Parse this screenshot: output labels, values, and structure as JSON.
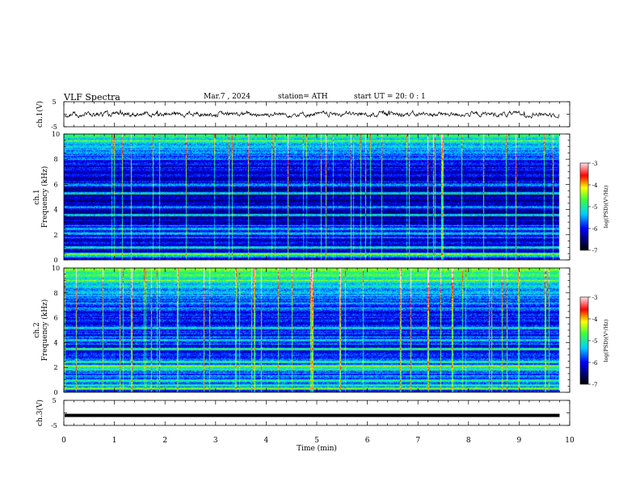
{
  "header": {
    "title": "VLF  Spectra",
    "date": "Mar.7  , 2024",
    "station": "station= ATH",
    "start_ut": "start  UT  =   20: 0   : 1"
  },
  "chart_data": [
    {
      "type": "line",
      "panel": "ch1-waveform",
      "ylabel": "ch.1(V)",
      "ylim": [
        -5,
        5
      ],
      "yticks": [
        "5",
        "-5"
      ],
      "x_range_min": [
        0,
        9.8
      ],
      "trace_level_v": 0.0,
      "trace_amplitude_v": 1.5
    },
    {
      "type": "heatmap",
      "panel": "ch1-spectrogram",
      "ylabel_line1": "ch.1",
      "ylabel_line2": "Frequency  (kHz)",
      "ylim": [
        0,
        10
      ],
      "yticks": [
        "0",
        "2",
        "4",
        "6",
        "8",
        "10"
      ],
      "x_range_min": [
        0,
        9.8
      ],
      "strong_bands_khz": [
        0.3,
        0.5,
        1.0,
        2.1,
        2.5,
        3.6,
        4.2,
        5.3,
        6.0
      ],
      "colorbar": {
        "label": "log(PSD)(V²/Hz)",
        "ticks": [
          "-3",
          "-4",
          "-5",
          "-6",
          "-7"
        ],
        "range": [
          -7,
          -3
        ]
      }
    },
    {
      "type": "heatmap",
      "panel": "ch2-spectrogram",
      "ylabel_line1": "ch.2",
      "ylabel_line2": "Frequency  (kHz)",
      "ylim": [
        0,
        10
      ],
      "yticks": [
        "0",
        "2",
        "4",
        "6",
        "8",
        "10"
      ],
      "x_range_min": [
        0,
        9.8
      ],
      "strong_bands_khz": [
        0.3,
        0.6,
        1.0,
        1.9,
        2.1,
        2.5,
        3.5,
        4.2,
        5.2
      ],
      "colorbar": {
        "label": "log(PSD)(V²/Hz)",
        "ticks": [
          "-3",
          "-4",
          "-5",
          "-6",
          "-7"
        ],
        "range": [
          -7,
          -3
        ]
      }
    },
    {
      "type": "line",
      "panel": "ch3-waveform",
      "ylabel": "ch.3(V)",
      "ylim": [
        -5,
        5
      ],
      "yticks": [
        "5",
        "-5"
      ],
      "xlabel": "Time  (min)",
      "xlim": [
        0,
        10
      ],
      "xticks": [
        "0",
        "1",
        "2",
        "3",
        "4",
        "5",
        "6",
        "7",
        "8",
        "9",
        "10"
      ],
      "x_range_min": [
        0,
        9.8
      ],
      "trace_level_v": -1.0
    }
  ]
}
